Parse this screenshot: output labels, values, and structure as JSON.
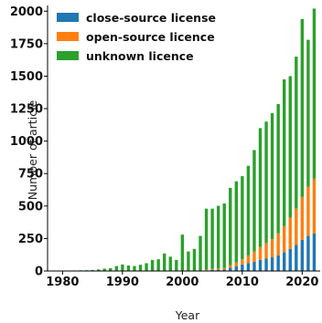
{
  "chart_data": {
    "type": "bar",
    "stacked": true,
    "title": "",
    "xlabel": "Year",
    "ylabel": "Number of article",
    "xlim": [
      1977.5,
      2023
    ],
    "ylim": [
      0,
      2030
    ],
    "xticks": [
      1980,
      1990,
      2000,
      2010,
      2020
    ],
    "yticks": [
      0,
      250,
      500,
      750,
      1000,
      1250,
      1500,
      1750,
      2000
    ],
    "grid": false,
    "legend_position": "top-left",
    "colors": {
      "close": "#1f77b4",
      "open": "#ff7f0e",
      "unknown": "#2ca02c"
    },
    "x": [
      1980,
      1981,
      1982,
      1983,
      1984,
      1985,
      1986,
      1987,
      1988,
      1989,
      1990,
      1991,
      1992,
      1993,
      1994,
      1995,
      1996,
      1997,
      1998,
      1999,
      2000,
      2001,
      2002,
      2003,
      2004,
      2005,
      2006,
      2007,
      2008,
      2009,
      2010,
      2011,
      2012,
      2013,
      2014,
      2015,
      2016,
      2017,
      2018,
      2019,
      2020,
      2021,
      2022
    ],
    "series": [
      {
        "name": "close-source license",
        "key": "close",
        "values": [
          0,
          0,
          0,
          0,
          0,
          0,
          0,
          0,
          0,
          0,
          0,
          0,
          0,
          0,
          0,
          0,
          0,
          0,
          0,
          0,
          0,
          0,
          0,
          0,
          5,
          8,
          10,
          12,
          25,
          35,
          50,
          60,
          70,
          85,
          95,
          105,
          120,
          145,
          170,
          200,
          240,
          270,
          290
        ]
      },
      {
        "name": "open-source licence",
        "key": "open",
        "values": [
          0,
          0,
          0,
          0,
          0,
          0,
          0,
          0,
          0,
          0,
          0,
          0,
          0,
          0,
          0,
          0,
          0,
          0,
          0,
          0,
          0,
          0,
          0,
          0,
          5,
          8,
          10,
          12,
          20,
          30,
          40,
          60,
          80,
          100,
          120,
          140,
          170,
          200,
          240,
          280,
          330,
          380,
          420
        ]
      },
      {
        "name": "unknown licence",
        "key": "unknown",
        "values": [
          2,
          3,
          4,
          5,
          6,
          8,
          12,
          18,
          22,
          38,
          50,
          42,
          38,
          48,
          60,
          85,
          90,
          135,
          110,
          85,
          280,
          150,
          170,
          270,
          470,
          464,
          482,
          496,
          595,
          625,
          640,
          690,
          781,
          915,
          935,
          970,
          995,
          1130,
          1090,
          1170,
          1370,
          1130,
          1310
        ]
      }
    ]
  }
}
